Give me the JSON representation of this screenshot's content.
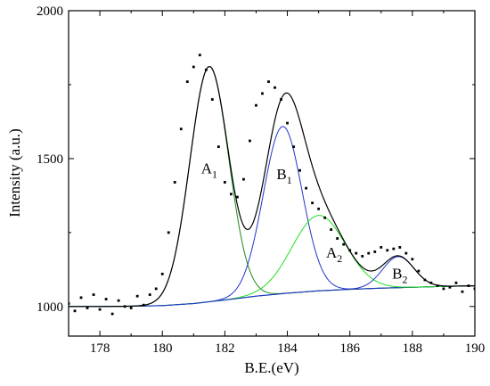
{
  "chart_data": {
    "type": "line",
    "xlabel": "B.E.(eV)",
    "ylabel": "Intensity (a.u.)",
    "xlim": [
      177,
      190
    ],
    "ylim": [
      900,
      2000
    ],
    "xticks": [
      178,
      180,
      182,
      184,
      186,
      188,
      190
    ],
    "yticks": [
      1000,
      1500,
      2000
    ],
    "xtick_labels": [
      "178",
      "180",
      "182",
      "184",
      "186",
      "188",
      "190"
    ],
    "ytick_labels": [
      "1000",
      "1500",
      "2000"
    ],
    "grid": false,
    "legend": "none",
    "annotations": [
      {
        "main": "A",
        "sub": "1",
        "x": 181.5,
        "y": 1450
      },
      {
        "main": "B",
        "sub": "1",
        "x": 183.9,
        "y": 1430
      },
      {
        "main": "A",
        "sub": "2",
        "x": 185.5,
        "y": 1165
      },
      {
        "main": "B",
        "sub": "2",
        "x": 187.6,
        "y": 1095
      }
    ],
    "background": {
      "x": [
        177,
        178,
        179,
        180,
        181,
        182,
        183,
        184,
        185,
        186,
        187,
        188,
        189,
        190
      ],
      "y": [
        1000,
        1000,
        1001,
        1003,
        1010,
        1022,
        1035,
        1045,
        1053,
        1058,
        1062,
        1065,
        1068,
        1070
      ]
    },
    "peaks": [
      {
        "label": "A1",
        "center": 181.5,
        "height": 795,
        "sigma": 0.62,
        "color": "#1a8a1a"
      },
      {
        "label": "B1",
        "center": 183.85,
        "height": 565,
        "sigma": 0.62,
        "color": "#2233cc"
      },
      {
        "label": "A2",
        "center": 185.0,
        "height": 255,
        "sigma": 0.85,
        "color": "#22dd22"
      },
      {
        "label": "B2",
        "center": 187.55,
        "height": 105,
        "sigma": 0.5,
        "color": "#2233cc"
      }
    ],
    "series": [
      {
        "type": "scatter",
        "x": [
          177.0,
          177.2,
          177.4,
          177.6,
          177.8,
          178.0,
          178.2,
          178.4,
          178.6,
          178.8,
          179.0,
          179.2,
          179.4,
          179.6,
          179.8,
          180.0,
          180.2,
          180.4,
          180.6,
          180.8,
          181.0,
          181.2,
          181.4,
          181.6,
          181.8,
          182.0,
          182.2,
          182.4,
          182.6,
          182.8,
          183.0,
          183.2,
          183.4,
          183.6,
          183.8,
          184.0,
          184.2,
          184.4,
          184.6,
          184.8,
          185.0,
          185.2,
          185.4,
          185.6,
          185.8,
          186.0,
          186.2,
          186.4,
          186.6,
          186.8,
          187.0,
          187.2,
          187.4,
          187.6,
          187.8,
          188.0,
          188.2,
          188.4,
          188.6,
          188.8,
          189.0,
          189.2,
          189.4,
          189.6,
          189.8,
          190.0
        ],
        "y": [
          1010,
          985,
          1030,
          995,
          1040,
          990,
          1025,
          975,
          1020,
          1000,
          995,
          1035,
          1005,
          1040,
          1060,
          1110,
          1250,
          1420,
          1600,
          1760,
          1810,
          1850,
          1800,
          1700,
          1540,
          1420,
          1380,
          1370,
          1430,
          1560,
          1680,
          1720,
          1760,
          1740,
          1700,
          1620,
          1540,
          1460,
          1400,
          1350,
          1330,
          1300,
          1260,
          1230,
          1210,
          1190,
          1180,
          1170,
          1180,
          1185,
          1200,
          1190,
          1195,
          1200,
          1180,
          1160,
          1120,
          1090,
          1080,
          1070,
          1060,
          1065,
          1080,
          1050,
          1070,
          1060
        ]
      }
    ]
  }
}
